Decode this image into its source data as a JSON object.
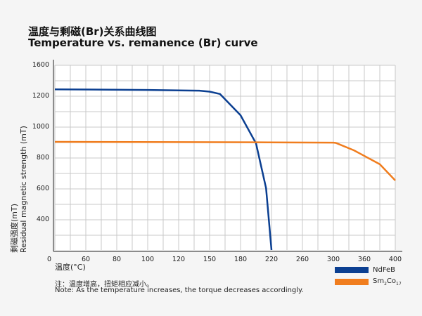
{
  "title_zh": "温度与剩磁(Br)关系曲线图",
  "title_en": "Temperature vs. remanence (Br) curve",
  "chart_data": {
    "type": "line",
    "xlabel": "温度(°C)",
    "ylabel_zh": "剩磁强度(mT)",
    "ylabel_en": "Residual magnetic strength (mT)",
    "origin_label": "0",
    "x_ticks": [
      60,
      80,
      100,
      120,
      150,
      180,
      220,
      260,
      300,
      360,
      400
    ],
    "y_ticks": [
      400,
      600,
      800,
      1000,
      1200,
      1600
    ],
    "grid": true,
    "legend_position": "bottom-right",
    "series": [
      {
        "name": "NdFeB",
        "color": "#0b3f91",
        "x": [
          40,
          100,
          140,
          150,
          160,
          180,
          200,
          213,
          220
        ],
        "y": [
          1280,
          1272,
          1262,
          1250,
          1220,
          1072,
          890,
          600,
          200
        ]
      },
      {
        "name": "Sm2Co17",
        "color": "#f07d1e",
        "x": [
          40,
          200,
          300,
          305,
          340,
          380,
          400
        ],
        "y": [
          900,
          897,
          895,
          893,
          845,
          755,
          650
        ]
      }
    ]
  },
  "legend": {
    "ndfeb": "NdFeB",
    "smco_base": "Sm",
    "smco_sub1": "2",
    "smco_mid": "Co",
    "smco_sub2": "17"
  },
  "note_zh": "注：温度增高，扭矩相应减小。",
  "note_en": "Note: As the temperature increases, the torque decreases accordingly."
}
